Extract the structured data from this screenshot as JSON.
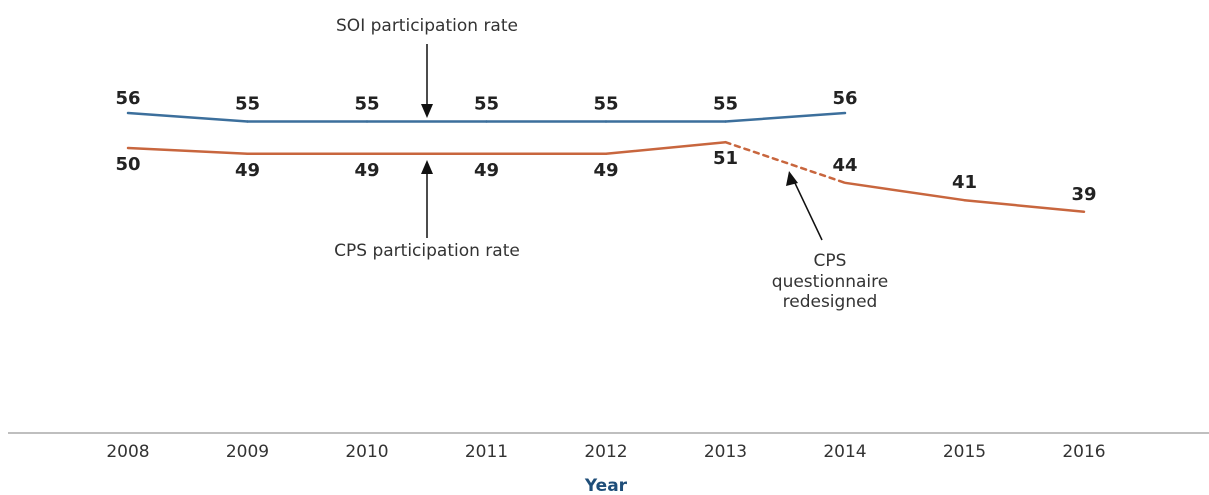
{
  "chart_data": {
    "type": "line",
    "x": [
      2008,
      2009,
      2010,
      2011,
      2012,
      2013,
      2014,
      2015,
      2016
    ],
    "xlabel": "Year",
    "ylabel": "",
    "series": [
      {
        "name": "SOI participation rate",
        "color": "#3c6f9c",
        "values": [
          56,
          55,
          55,
          55,
          55,
          55,
          56,
          null,
          null
        ]
      },
      {
        "name": "CPS participation rate",
        "color": "#c8663e",
        "values": [
          50,
          49,
          49,
          49,
          49,
          51,
          44,
          41,
          39
        ],
        "dashed_segment": [
          2013,
          2014
        ]
      }
    ],
    "annotations": {
      "soi": "SOI participation rate",
      "cps": "CPS participation rate",
      "redesign": [
        "CPS",
        "questionnaire",
        "redesigned"
      ]
    },
    "grid": false,
    "legend": "none",
    "axis_color": "#aaaaaa",
    "xlabel_color": "#1f4e79"
  }
}
